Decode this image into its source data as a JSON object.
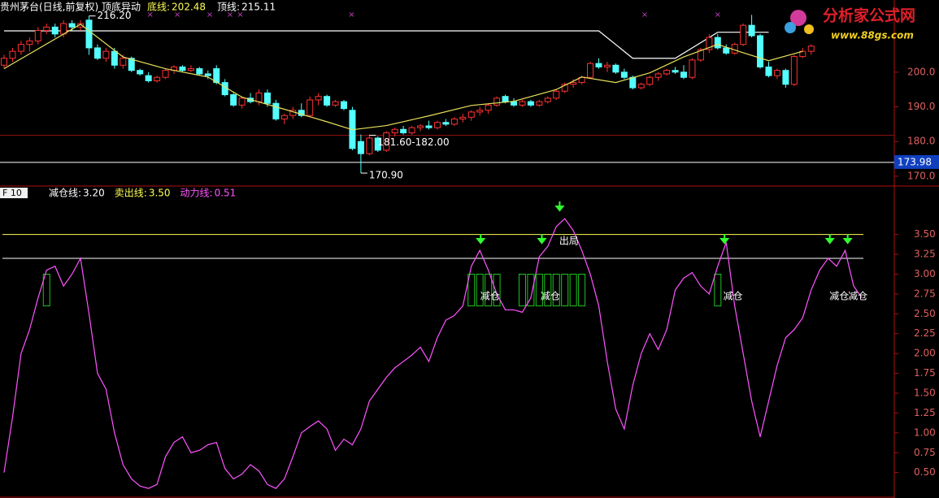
{
  "header": {
    "title": "贵州茅台(日线,前复权) 顶底异动",
    "items": [
      {
        "name": "底线:",
        "value": 202.48,
        "color": "#ffff54"
      },
      {
        "name": "顶线:",
        "value": 215.11,
        "color": "#ffffff"
      }
    ]
  },
  "logo": {
    "title": "分析家公式网",
    "url": "www.88gs.com"
  },
  "chart_data": [
    {
      "type": "candlestick",
      "ylim": [
        167.4,
        220.8
      ],
      "yticks": [
        {
          "value": 200,
          "label": "200.0"
        },
        {
          "value": 190,
          "label": "190.0"
        },
        {
          "value": 180,
          "label": "180.0"
        },
        {
          "value": 170,
          "label": "170.0"
        }
      ],
      "up_color": "#ff3232",
      "down_color": "#54ffff",
      "candles": [
        [
          202,
          205,
          201,
          204
        ],
        [
          204,
          207,
          203,
          206
        ],
        [
          206,
          209,
          205,
          208
        ],
        [
          208,
          210,
          206,
          209
        ],
        [
          209,
          213,
          208,
          212
        ],
        [
          212,
          214,
          211,
          213
        ],
        [
          213,
          214,
          210,
          211
        ],
        [
          211,
          215,
          210,
          214
        ],
        [
          214,
          215,
          212,
          213
        ],
        [
          213,
          215,
          212,
          214
        ],
        [
          215,
          216.2,
          205,
          207
        ],
        [
          207,
          208,
          203.5,
          204
        ],
        [
          204,
          207,
          203,
          206
        ],
        [
          206,
          207,
          201,
          202
        ],
        [
          202,
          205,
          201,
          204
        ],
        [
          204,
          204.5,
          200,
          200.5
        ],
        [
          200.5,
          201,
          199,
          199.5
        ],
        [
          199,
          200,
          197,
          197.5
        ],
        [
          197.5,
          199,
          197,
          198.5
        ],
        [
          198.5,
          201,
          198,
          200.5
        ],
        [
          200.5,
          202,
          199.5,
          201.5
        ],
        [
          201.5,
          202,
          200,
          200.5
        ],
        [
          200.5,
          202,
          200,
          201
        ],
        [
          201,
          201.5,
          199,
          199.5
        ],
        [
          199.5,
          200.5,
          198,
          199
        ],
        [
          201,
          202,
          196.5,
          197
        ],
        [
          197,
          198,
          193,
          193.5
        ],
        [
          193.5,
          194,
          190,
          190.5
        ],
        [
          190.5,
          193,
          189.5,
          192.5
        ],
        [
          192.5,
          194,
          191,
          191.5
        ],
        [
          191.5,
          195,
          190.5,
          194
        ],
        [
          194,
          195,
          190,
          191
        ],
        [
          191,
          192,
          186,
          186.5
        ],
        [
          186.5,
          188,
          185,
          187.5
        ],
        [
          187.5,
          190,
          186.5,
          189
        ],
        [
          189,
          191,
          187,
          187.5
        ],
        [
          187.5,
          193,
          187,
          192
        ],
        [
          192,
          194,
          190.5,
          193
        ],
        [
          193,
          193.5,
          190,
          190.5
        ],
        [
          190.5,
          192,
          190,
          191.5
        ],
        [
          191.5,
          192,
          189,
          189.5
        ],
        [
          189,
          190,
          177.5,
          178
        ],
        [
          180,
          182,
          170.9,
          176.5
        ],
        [
          176.5,
          182,
          176,
          181
        ],
        [
          181,
          181.5,
          177,
          177.5
        ],
        [
          177.5,
          183,
          177,
          182.5
        ],
        [
          182.5,
          184,
          181.5,
          183.5
        ],
        [
          183.5,
          184.5,
          182,
          182.5
        ],
        [
          182.5,
          184.5,
          182,
          184
        ],
        [
          184,
          185,
          183,
          184.5
        ],
        [
          184.5,
          186,
          183.5,
          184
        ],
        [
          184,
          186,
          183.5,
          185.5
        ],
        [
          185.5,
          186.5,
          184.5,
          185
        ],
        [
          185,
          187,
          184.5,
          186.5
        ],
        [
          186.5,
          188,
          185.5,
          187
        ],
        [
          187,
          189,
          186,
          188.5
        ],
        [
          188.5,
          190,
          187.5,
          189
        ],
        [
          189,
          191,
          188,
          190.5
        ],
        [
          190.5,
          193,
          190,
          192.5
        ],
        [
          193,
          193.5,
          191,
          191.5
        ],
        [
          191.5,
          192.5,
          190,
          190.5
        ],
        [
          190.5,
          192,
          190,
          191.5
        ],
        [
          191.5,
          192,
          190,
          190.5
        ],
        [
          190.5,
          192,
          190,
          191.5
        ],
        [
          191.5,
          193,
          191,
          192.5
        ],
        [
          192.5,
          195,
          192,
          194.5
        ],
        [
          194.5,
          197,
          194,
          196.5
        ],
        [
          196.5,
          198,
          195.5,
          197
        ],
        [
          197,
          199,
          196.5,
          198.5
        ],
        [
          198.5,
          203,
          198,
          202.5
        ],
        [
          202.5,
          204,
          201,
          201.5
        ],
        [
          201.5,
          203,
          200,
          202
        ],
        [
          202,
          202.5,
          199.5,
          200
        ],
        [
          200,
          201,
          198,
          198.5
        ],
        [
          198.5,
          199,
          195,
          195.5
        ],
        [
          195.5,
          197,
          195,
          196.5
        ],
        [
          196.5,
          199,
          196,
          198.5
        ],
        [
          198.5,
          200,
          197.5,
          199.5
        ],
        [
          199.5,
          201,
          199,
          200.5
        ],
        [
          200.5,
          201.5,
          199.5,
          200
        ],
        [
          200,
          202,
          198,
          198.5
        ],
        [
          198.5,
          204,
          198,
          203.5
        ],
        [
          203.5,
          207,
          203,
          206.5
        ],
        [
          206.5,
          211,
          205.5,
          210
        ],
        [
          210,
          211,
          206.5,
          207
        ],
        [
          207,
          208,
          205,
          205.5
        ],
        [
          205.5,
          208.5,
          205,
          208
        ],
        [
          208,
          214,
          207.5,
          213.5
        ],
        [
          213.5,
          216.5,
          210,
          210.5
        ],
        [
          210.5,
          211,
          201,
          201.5
        ],
        [
          201.5,
          203,
          198.5,
          199
        ],
        [
          199,
          201,
          198,
          200.5
        ],
        [
          200.5,
          201,
          195.5,
          196.5
        ],
        [
          196.5,
          205,
          196,
          204.5
        ],
        [
          204.5,
          207,
          204,
          206
        ],
        [
          206,
          208,
          205,
          207.5
        ]
      ],
      "ma": {
        "color": "#e8e05a",
        "x": [
          0,
          9,
          14,
          19,
          24,
          28,
          33,
          38,
          41,
          45,
          50,
          55,
          60,
          65,
          68,
          72,
          76,
          80,
          84,
          87,
          90,
          94
        ],
        "values": [
          201,
          213.8,
          204.4,
          201,
          198.6,
          192.8,
          189.3,
          185.7,
          183.4,
          184.6,
          187.4,
          190.4,
          191.6,
          195,
          198.6,
          197,
          199.8,
          204.4,
          208,
          205.6,
          203.3,
          206
        ]
      },
      "top_line": {
        "color": "#ffffff",
        "x": [
          0,
          70,
          74,
          79,
          84,
          90
        ],
        "values": [
          211.9,
          211.9,
          204,
          204,
          211.5,
          211.5
        ]
      },
      "hlines": [
        {
          "value": 181.8,
          "color": "#8a1010"
        },
        {
          "value": 173.98,
          "color": "#ffffff"
        }
      ],
      "annotations": [
        {
          "text": "216.20",
          "x": 10,
          "value": 216.2
        },
        {
          "text": "181.60-182.00",
          "x": 43,
          "value": 181.8
        },
        {
          "text": "170.90",
          "x": 42,
          "value": 170.9
        }
      ],
      "top_marks": [
        17.2,
        20.4,
        24.2,
        26.6,
        27.8,
        40.9,
        75.4,
        84
      ]
    },
    {
      "type": "line",
      "tab": "F 10",
      "legend": [
        {
          "name": "减仓线:",
          "value": 3.2,
          "value_label": "3.20",
          "color": "#ffffff"
        },
        {
          "name": "卖出线:",
          "value": 3.5,
          "value_label": "3.50",
          "color": "#ffff54"
        },
        {
          "name": "动力线:",
          "value": 0.51,
          "value_label": "0.51",
          "color": "#ff54ff"
        }
      ],
      "ylim": [
        0.21,
        4.08
      ],
      "yticks": [
        {
          "value": 3.5,
          "label": "3.50"
        },
        {
          "value": 3.25,
          "label": "3.25"
        },
        {
          "value": 3,
          "label": "3.00"
        },
        {
          "value": 2.75,
          "label": "2.75"
        },
        {
          "value": 2.5,
          "label": "2.50"
        },
        {
          "value": 2.25,
          "label": "2.25"
        },
        {
          "value": 2,
          "label": "2.00"
        },
        {
          "value": 1.75,
          "label": "1.75"
        },
        {
          "value": 1.5,
          "label": "1.50"
        },
        {
          "value": 1.25,
          "label": "1.25"
        },
        {
          "value": 1,
          "label": "1.00"
        },
        {
          "value": 0.75,
          "label": "0.75"
        },
        {
          "value": 0.5,
          "label": "0.50"
        }
      ],
      "values": [
        0.5,
        1.2,
        2.0,
        2.3,
        2.7,
        3.05,
        3.1,
        2.85,
        3.0,
        3.2,
        2.5,
        1.75,
        1.55,
        1.0,
        0.6,
        0.42,
        0.33,
        0.3,
        0.35,
        0.7,
        0.88,
        0.95,
        0.75,
        0.78,
        0.85,
        0.88,
        0.55,
        0.42,
        0.48,
        0.6,
        0.52,
        0.35,
        0.3,
        0.42,
        0.7,
        1.0,
        1.08,
        1.15,
        1.05,
        0.78,
        0.92,
        0.85,
        1.05,
        1.4,
        1.55,
        1.7,
        1.82,
        1.9,
        1.98,
        2.08,
        1.9,
        2.2,
        2.42,
        2.48,
        2.6,
        3.1,
        3.3,
        3.05,
        2.75,
        2.55,
        2.55,
        2.52,
        2.7,
        3.22,
        3.35,
        3.6,
        3.7,
        3.55,
        3.3,
        3.0,
        2.6,
        1.9,
        1.3,
        1.05,
        1.6,
        2.0,
        2.25,
        2.05,
        2.3,
        2.8,
        2.95,
        3.02,
        2.85,
        2.75,
        3.1,
        3.4,
        2.6,
        2.0,
        1.4,
        0.95,
        1.4,
        1.85,
        2.2,
        2.3,
        2.45,
        2.8,
        3.05,
        3.2,
        3.1,
        3.3,
        2.85,
        2.7
      ],
      "signal_boxes": {
        "x": [
          5,
          55,
          56,
          57,
          58,
          61,
          62,
          63,
          64,
          65,
          66,
          67,
          68,
          84
        ],
        "range": [
          2.6,
          3.0
        ],
        "color": "#1fc41f"
      },
      "reduce_arrows": [
        56.1,
        63.3,
        84.8,
        97.2,
        99.3
      ],
      "exit_arrow": 65.4,
      "reduce_labels": {
        "text": "减仓",
        "x": [
          57.2,
          64.3,
          85.8,
          98.3,
          100.5
        ]
      },
      "exit_label": {
        "text": "出局",
        "x": 66.5
      }
    }
  ]
}
